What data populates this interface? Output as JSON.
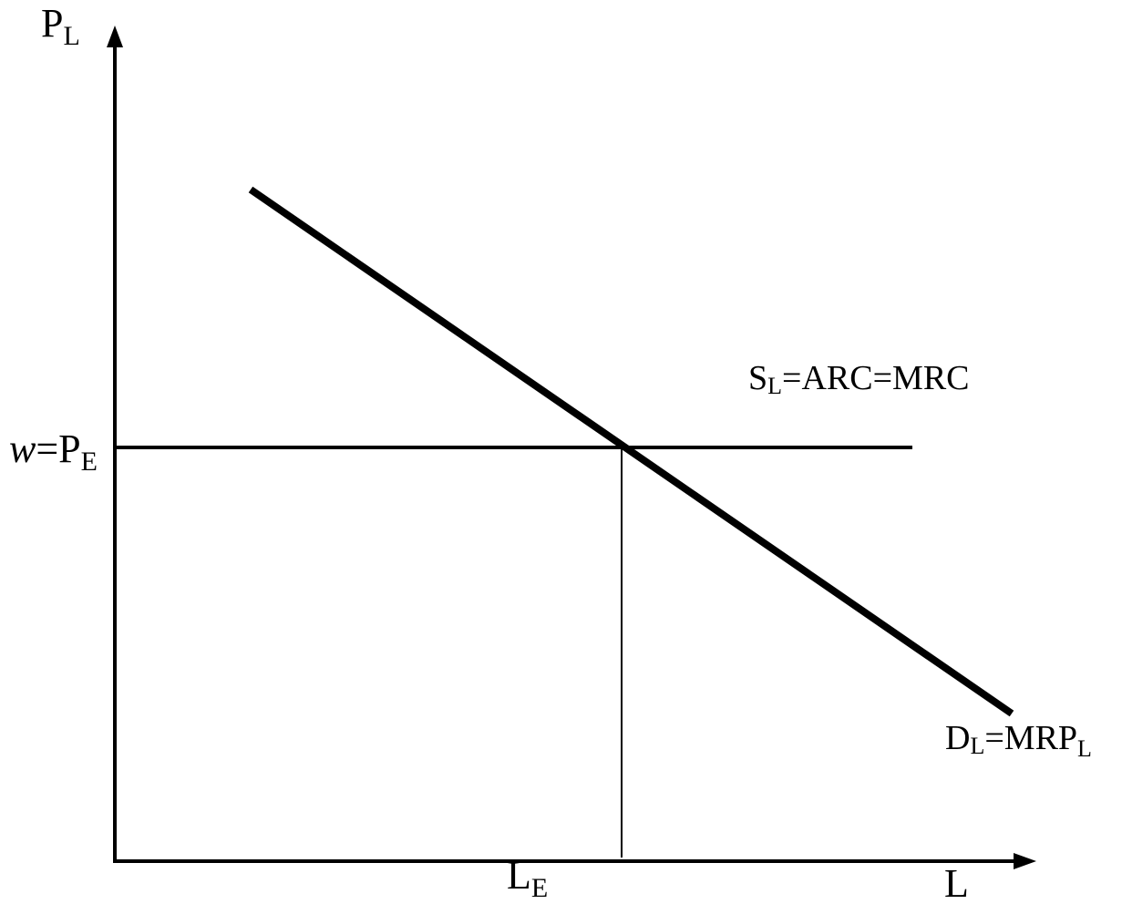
{
  "diagram": {
    "y_axis": {
      "symbol": "P",
      "subscript": "L"
    },
    "x_axis": {
      "symbol": "L"
    },
    "supply_curve": {
      "label_main": "S",
      "label_sub": "L",
      "label_rest": "=ARC=MRC"
    },
    "demand_curve": {
      "label_main": "D",
      "label_sub": "L",
      "label_rest": "=MRP",
      "label_sub2": "L"
    },
    "equilibrium_wage": {
      "prefix_italic": "w",
      "rest": "=P",
      "subscript": "E"
    },
    "equilibrium_quantity": {
      "symbol": "L",
      "subscript": "E"
    },
    "colors": {
      "ink": "#000000",
      "background": "#ffffff"
    }
  }
}
